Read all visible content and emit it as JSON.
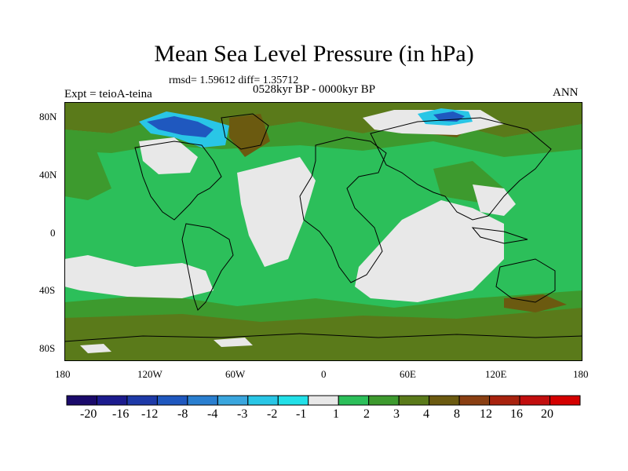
{
  "title": "Mean Sea Level Pressure (in hPa)",
  "stats_text": "rmsd= 1.59612 diff= 1.35712",
  "experiment": "Expt = teioA-teina",
  "period": "0528kyr BP - 0000kyr BP",
  "season": "ANN",
  "lat_labels": [
    "80N",
    "40N",
    "0",
    "40S",
    "80S"
  ],
  "lon_labels": [
    "180",
    "120W",
    "60W",
    "0",
    "60E",
    "120E",
    "180"
  ],
  "colorbar": {
    "labels": [
      "-20",
      "-16",
      "-12",
      "-8",
      "-4",
      "-3",
      "-2",
      "-1",
      "1",
      "2",
      "3",
      "4",
      "8",
      "12",
      "16",
      "20"
    ],
    "colors": [
      "#1a0a6b",
      "#1c1b8e",
      "#1e3aa8",
      "#1f58bf",
      "#2a7fd0",
      "#3aa6de",
      "#29c6e6",
      "#22e0e8",
      "#e8e8e8",
      "#2cbf5a",
      "#3d9a2e",
      "#5a7a1a",
      "#6b5a10",
      "#8a3f12",
      "#a8220e",
      "#c20e0e",
      "#d40000"
    ]
  },
  "palette": {
    "land_outline": "#000000",
    "low_change": "#e8e8e8",
    "green": "#2cbf5a",
    "dark_green": "#3d9a2e",
    "olive": "#5a7a1a",
    "brown": "#6b5a10"
  }
}
